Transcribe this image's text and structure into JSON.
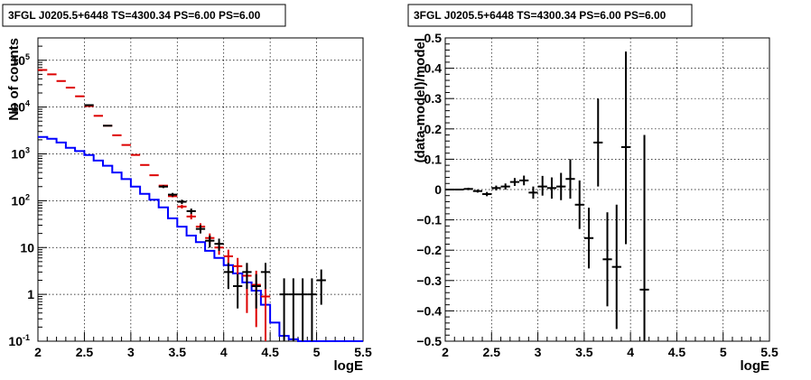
{
  "chart_data": [
    {
      "type": "line",
      "title": "3FGL J0205.5+6448 TS=4300.34 PS=6.00 PS=6.00",
      "xlabel": "logE",
      "ylabel": "Nb of counts",
      "xlim": [
        2,
        5.5
      ],
      "ylim": [
        0.1,
        300000
      ],
      "yscale": "log",
      "grid": true,
      "x_ticks": [
        "2",
        "2.5",
        "3",
        "3.5",
        "4",
        "4.5",
        "5",
        "5.5"
      ],
      "y_ticks": [
        {
          "value": 0.1,
          "base": "10",
          "exp": "-1"
        },
        {
          "value": 1,
          "base": "1",
          "exp": ""
        },
        {
          "value": 10,
          "base": "10",
          "exp": ""
        },
        {
          "value": 100,
          "base": "10",
          "exp": "2"
        },
        {
          "value": 1000,
          "base": "10",
          "exp": "3"
        },
        {
          "value": 10000,
          "base": "10",
          "exp": "4"
        },
        {
          "value": 100000,
          "base": "10",
          "exp": "5"
        }
      ],
      "series": [
        {
          "role": "model-total",
          "color": "#0000ff",
          "bin_edges": [
            2.0,
            2.1,
            2.2,
            2.3,
            2.4,
            2.5,
            2.6,
            2.7,
            2.8,
            2.9,
            3.0,
            3.1,
            3.2,
            3.3,
            3.4,
            3.5,
            3.6,
            3.7,
            3.8,
            3.9,
            4.0,
            4.1,
            4.2,
            4.3,
            4.4,
            4.5,
            4.6,
            4.7,
            4.8,
            4.9,
            5.0,
            5.1,
            5.2,
            5.3,
            5.4,
            5.5
          ],
          "values": [
            2300,
            2100,
            1750,
            1350,
            1150,
            950,
            720,
            560,
            400,
            290,
            200,
            140,
            105,
            72,
            42,
            28,
            18,
            13,
            8.5,
            6,
            4.2,
            2.8,
            1.8,
            1.2,
            0.6,
            0.25,
            0.13,
            0.11,
            0.1,
            0.1,
            0.1,
            0.1,
            0.1,
            0.1,
            0.1
          ]
        },
        {
          "role": "model-with-errors",
          "color": "#dd0000",
          "points": [
            {
              "x": 2.05,
              "y": 62000,
              "ylo": 62000,
              "yhi": 62000
            },
            {
              "x": 2.15,
              "y": 50000,
              "ylo": 50000,
              "yhi": 50000
            },
            {
              "x": 2.25,
              "y": 36000,
              "ylo": 36000,
              "yhi": 36000
            },
            {
              "x": 2.35,
              "y": 26000,
              "ylo": 26000,
              "yhi": 26000
            },
            {
              "x": 2.45,
              "y": 17000,
              "ylo": 17000,
              "yhi": 17000
            },
            {
              "x": 2.55,
              "y": 10500,
              "ylo": 10500,
              "yhi": 10500
            },
            {
              "x": 2.65,
              "y": 6500,
              "ylo": 6500,
              "yhi": 6500
            },
            {
              "x": 2.75,
              "y": 4000,
              "ylo": 4000,
              "yhi": 4000
            },
            {
              "x": 2.85,
              "y": 2500,
              "ylo": 2500,
              "yhi": 2500
            },
            {
              "x": 2.95,
              "y": 1550,
              "ylo": 1550,
              "yhi": 1550
            },
            {
              "x": 3.05,
              "y": 950,
              "ylo": 950,
              "yhi": 950
            },
            {
              "x": 3.15,
              "y": 580,
              "ylo": 580,
              "yhi": 580
            },
            {
              "x": 3.25,
              "y": 350,
              "ylo": 350,
              "yhi": 350
            },
            {
              "x": 3.35,
              "y": 210,
              "ylo": 210,
              "yhi": 210
            },
            {
              "x": 3.45,
              "y": 125,
              "ylo": 118,
              "yhi": 132
            },
            {
              "x": 3.55,
              "y": 75,
              "ylo": 68,
              "yhi": 82
            },
            {
              "x": 3.65,
              "y": 46,
              "ylo": 40,
              "yhi": 52
            },
            {
              "x": 3.75,
              "y": 28,
              "ylo": 23,
              "yhi": 33
            },
            {
              "x": 3.85,
              "y": 16,
              "ylo": 12,
              "yhi": 20
            },
            {
              "x": 3.95,
              "y": 10,
              "ylo": 7,
              "yhi": 13
            },
            {
              "x": 4.05,
              "y": 6.5,
              "ylo": 4,
              "yhi": 9
            },
            {
              "x": 4.15,
              "y": 4,
              "ylo": 2,
              "yhi": 6
            },
            {
              "x": 4.25,
              "y": 2.5,
              "ylo": 0.4,
              "yhi": 4.5
            },
            {
              "x": 4.35,
              "y": 1.6,
              "ylo": 0.2,
              "yhi": 3.2
            },
            {
              "x": 4.45,
              "y": 0.9,
              "ylo": 0.1,
              "yhi": 2.2
            }
          ]
        },
        {
          "role": "data",
          "color": "#000000",
          "points": [
            {
              "x": 2.55,
              "y": 11000,
              "ylo": 10900,
              "yhi": 11100
            },
            {
              "x": 2.75,
              "y": 4000,
              "ylo": 3940,
              "yhi": 4060
            },
            {
              "x": 3.35,
              "y": 200,
              "ylo": 186,
              "yhi": 214
            },
            {
              "x": 3.45,
              "y": 135,
              "ylo": 123,
              "yhi": 147
            },
            {
              "x": 3.55,
              "y": 95,
              "ylo": 85,
              "yhi": 105
            },
            {
              "x": 3.65,
              "y": 60,
              "ylo": 52,
              "yhi": 68
            },
            {
              "x": 3.75,
              "y": 25,
              "ylo": 20,
              "yhi": 30
            },
            {
              "x": 3.85,
              "y": 14,
              "ylo": 10,
              "yhi": 18
            },
            {
              "x": 3.95,
              "y": 12,
              "ylo": 8.5,
              "yhi": 15.5
            },
            {
              "x": 4.05,
              "y": 3,
              "ylo": 1.3,
              "yhi": 4.7
            },
            {
              "x": 4.15,
              "y": 1.5,
              "ylo": 0.5,
              "yhi": 2.7
            },
            {
              "x": 4.25,
              "y": 3,
              "ylo": 1.3,
              "yhi": 4.7
            },
            {
              "x": 4.35,
              "y": 1.5,
              "ylo": 0.5,
              "yhi": 2.7
            },
            {
              "x": 4.45,
              "y": 3,
              "ylo": 1.3,
              "yhi": 4.7
            },
            {
              "x": 4.65,
              "y": 1,
              "ylo": 0.1,
              "yhi": 2.2
            },
            {
              "x": 4.75,
              "y": 1,
              "ylo": 0.1,
              "yhi": 2.2
            },
            {
              "x": 4.85,
              "y": 1,
              "ylo": 0.1,
              "yhi": 2.2
            },
            {
              "x": 4.95,
              "y": 1,
              "ylo": 0.1,
              "yhi": 2.2
            },
            {
              "x": 5.05,
              "y": 2,
              "ylo": 0.6,
              "yhi": 3.4
            }
          ]
        }
      ]
    },
    {
      "type": "scatter",
      "title": "3FGL J0205.5+6448 TS=4300.34 PS=6.00 PS=6.00",
      "xlabel": "logE",
      "ylabel": "(data-model)/model",
      "xlim": [
        2,
        5.5
      ],
      "ylim": [
        -0.5,
        0.5
      ],
      "grid": true,
      "x_ticks": [
        "2",
        "2.5",
        "3",
        "3.5",
        "4",
        "4.5",
        "5",
        "5.5"
      ],
      "y_ticks": [
        "−0.5",
        "−0.4",
        "−0.3",
        "−0.2",
        "−0.1",
        "0",
        "0.1",
        "0.2",
        "0.3",
        "0.4",
        "0.5"
      ],
      "series": [
        {
          "role": "residuals",
          "color": "#000000",
          "points": [
            {
              "x": 2.05,
              "y": 0.0,
              "ylo": -0.003,
              "yhi": 0.003
            },
            {
              "x": 2.15,
              "y": 0.0,
              "ylo": -0.003,
              "yhi": 0.003
            },
            {
              "x": 2.25,
              "y": 0.002,
              "ylo": -0.002,
              "yhi": 0.006
            },
            {
              "x": 2.35,
              "y": -0.005,
              "ylo": -0.01,
              "yhi": 0.0
            },
            {
              "x": 2.45,
              "y": -0.015,
              "ylo": -0.022,
              "yhi": -0.008
            },
            {
              "x": 2.55,
              "y": 0.005,
              "ylo": -0.003,
              "yhi": 0.013
            },
            {
              "x": 2.65,
              "y": 0.01,
              "ylo": 0.0,
              "yhi": 0.02
            },
            {
              "x": 2.75,
              "y": 0.025,
              "ylo": 0.012,
              "yhi": 0.038
            },
            {
              "x": 2.85,
              "y": 0.03,
              "ylo": 0.014,
              "yhi": 0.046
            },
            {
              "x": 2.95,
              "y": -0.01,
              "ylo": -0.03,
              "yhi": 0.01
            },
            {
              "x": 3.05,
              "y": 0.01,
              "ylo": -0.02,
              "yhi": 0.045
            },
            {
              "x": 3.15,
              "y": 0.005,
              "ylo": -0.03,
              "yhi": 0.04
            },
            {
              "x": 3.25,
              "y": 0.01,
              "ylo": -0.035,
              "yhi": 0.055
            },
            {
              "x": 3.35,
              "y": 0.035,
              "ylo": -0.03,
              "yhi": 0.1
            },
            {
              "x": 3.45,
              "y": -0.05,
              "ylo": -0.13,
              "yhi": 0.03
            },
            {
              "x": 3.55,
              "y": -0.16,
              "ylo": -0.26,
              "yhi": -0.06
            },
            {
              "x": 3.65,
              "y": 0.155,
              "ylo": 0.01,
              "yhi": 0.3
            },
            {
              "x": 3.75,
              "y": -0.23,
              "ylo": -0.385,
              "yhi": -0.075
            },
            {
              "x": 3.85,
              "y": -0.255,
              "ylo": -0.46,
              "yhi": -0.05
            },
            {
              "x": 3.95,
              "y": 0.14,
              "ylo": -0.18,
              "yhi": 0.455
            },
            {
              "x": 4.15,
              "y": -0.33,
              "ylo": -0.5,
              "yhi": 0.18
            }
          ]
        }
      ]
    }
  ]
}
